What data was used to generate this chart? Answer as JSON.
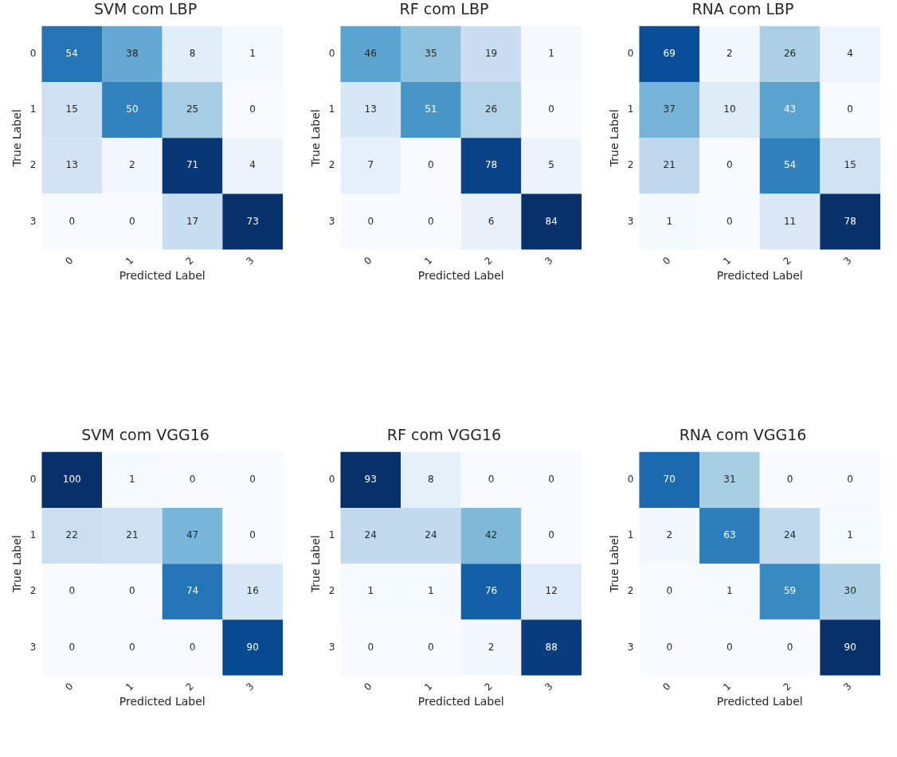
{
  "chart_data": [
    {
      "type": "heatmap",
      "title": "SVM com LBP",
      "xlabel": "Predicted Label",
      "ylabel": "True Label",
      "categories": [
        "0",
        "1",
        "2",
        "3"
      ],
      "y_categories": [
        "0",
        "1",
        "2",
        "3"
      ],
      "data_labels": true,
      "cells": [
        [
          54,
          38,
          8,
          1
        ],
        [
          15,
          50,
          25,
          0
        ],
        [
          13,
          2,
          71,
          4
        ],
        [
          0,
          0,
          17,
          73
        ]
      ]
    },
    {
      "type": "heatmap",
      "title": "RF com LBP",
      "xlabel": "Predicted Label",
      "ylabel": "True Label",
      "categories": [
        "0",
        "1",
        "2",
        "3"
      ],
      "y_categories": [
        "0",
        "1",
        "2",
        "3"
      ],
      "data_labels": true,
      "cells": [
        [
          46,
          35,
          19,
          1
        ],
        [
          13,
          51,
          26,
          0
        ],
        [
          7,
          0,
          78,
          5
        ],
        [
          0,
          0,
          6,
          84
        ]
      ]
    },
    {
      "type": "heatmap",
      "title": "RNA com LBP",
      "xlabel": "Predicted Label",
      "ylabel": "True Label",
      "categories": [
        "0",
        "1",
        "2",
        "3"
      ],
      "y_categories": [
        "0",
        "1",
        "2",
        "3"
      ],
      "data_labels": true,
      "cells": [
        [
          69,
          2,
          26,
          4
        ],
        [
          37,
          10,
          43,
          0
        ],
        [
          21,
          0,
          54,
          15
        ],
        [
          1,
          0,
          11,
          78
        ]
      ]
    },
    {
      "type": "heatmap",
      "title": "SVM com VGG16",
      "xlabel": "Predicted Label",
      "ylabel": "True Label",
      "categories": [
        "0",
        "1",
        "2",
        "3"
      ],
      "y_categories": [
        "0",
        "1",
        "2",
        "3"
      ],
      "data_labels": true,
      "cells": [
        [
          100,
          1,
          0,
          0
        ],
        [
          22,
          21,
          47,
          0
        ],
        [
          0,
          0,
          74,
          16
        ],
        [
          0,
          0,
          0,
          90
        ]
      ]
    },
    {
      "type": "heatmap",
      "title": "RF com VGG16",
      "xlabel": "Predicted Label",
      "ylabel": "True Label",
      "categories": [
        "0",
        "1",
        "2",
        "3"
      ],
      "y_categories": [
        "0",
        "1",
        "2",
        "3"
      ],
      "data_labels": true,
      "cells": [
        [
          93,
          8,
          0,
          0
        ],
        [
          24,
          24,
          42,
          0
        ],
        [
          1,
          1,
          76,
          12
        ],
        [
          0,
          0,
          2,
          88
        ]
      ]
    },
    {
      "type": "heatmap",
      "title": "RNA com VGG16",
      "xlabel": "Predicted Label",
      "ylabel": "True Label",
      "categories": [
        "0",
        "1",
        "2",
        "3"
      ],
      "y_categories": [
        "0",
        "1",
        "2",
        "3"
      ],
      "data_labels": true,
      "cells": [
        [
          70,
          31,
          0,
          0
        ],
        [
          2,
          63,
          24,
          1
        ],
        [
          0,
          1,
          59,
          30
        ],
        [
          0,
          0,
          0,
          90
        ]
      ]
    }
  ]
}
